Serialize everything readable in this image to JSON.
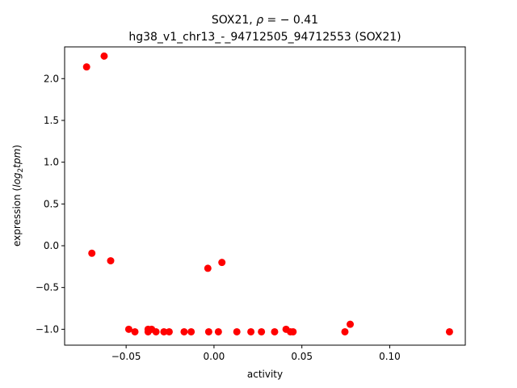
{
  "chart_data": {
    "type": "scatter",
    "title": {
      "line1_prefix": "SOX21, ",
      "line1_rho": "ρ",
      "line1_suffix": " = − 0.41",
      "line2": "hg38_v1_chr13_-_94712505_94712553 (SOX21)"
    },
    "xlabel": "activity",
    "ylabel": {
      "prefix": "expression (",
      "log": "log",
      "sub": "2",
      "tpm": "tpm",
      "suffix": ")"
    },
    "xlim": [
      -0.085,
      0.143
    ],
    "ylim": [
      -1.19,
      2.38
    ],
    "xticks": [
      {
        "value": -0.05,
        "label": "−0.05"
      },
      {
        "value": 0.0,
        "label": "0.00"
      },
      {
        "value": 0.05,
        "label": "0.05"
      },
      {
        "value": 0.1,
        "label": "0.10"
      }
    ],
    "yticks": [
      {
        "value": -1.0,
        "label": "−1.0"
      },
      {
        "value": -0.5,
        "label": "−0.5"
      },
      {
        "value": 0.0,
        "label": "0.0"
      },
      {
        "value": 0.5,
        "label": "0.5"
      },
      {
        "value": 1.0,
        "label": "1.0"
      },
      {
        "value": 1.5,
        "label": "1.5"
      },
      {
        "value": 2.0,
        "label": "2.0"
      }
    ],
    "marker_color": "#ff0000",
    "points": [
      {
        "x": -0.0725,
        "y": 2.14
      },
      {
        "x": -0.0625,
        "y": 2.27
      },
      {
        "x": -0.0695,
        "y": -0.09
      },
      {
        "x": -0.0588,
        "y": -0.18
      },
      {
        "x": -0.0035,
        "y": -0.27
      },
      {
        "x": 0.0045,
        "y": -0.2
      },
      {
        "x": -0.0485,
        "y": -1.0
      },
      {
        "x": -0.045,
        "y": -1.03
      },
      {
        "x": -0.0375,
        "y": -1.0
      },
      {
        "x": -0.0375,
        "y": -1.03
      },
      {
        "x": -0.0355,
        "y": -1.0
      },
      {
        "x": -0.033,
        "y": -1.03
      },
      {
        "x": -0.0285,
        "y": -1.03
      },
      {
        "x": -0.0255,
        "y": -1.03
      },
      {
        "x": -0.017,
        "y": -1.03
      },
      {
        "x": -0.013,
        "y": -1.03
      },
      {
        "x": -0.003,
        "y": -1.03
      },
      {
        "x": 0.0025,
        "y": -1.03
      },
      {
        "x": 0.013,
        "y": -1.03
      },
      {
        "x": 0.021,
        "y": -1.03
      },
      {
        "x": 0.027,
        "y": -1.03
      },
      {
        "x": 0.0345,
        "y": -1.03
      },
      {
        "x": 0.041,
        "y": -1.0
      },
      {
        "x": 0.0435,
        "y": -1.03
      },
      {
        "x": 0.045,
        "y": -1.03
      },
      {
        "x": 0.0745,
        "y": -1.03
      },
      {
        "x": 0.0775,
        "y": -0.94
      },
      {
        "x": 0.134,
        "y": -1.03
      }
    ]
  }
}
